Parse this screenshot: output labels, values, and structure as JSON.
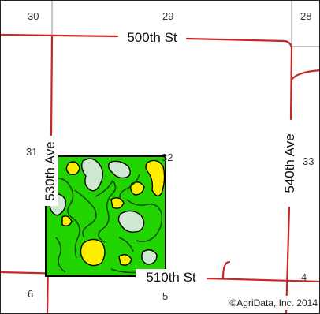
{
  "map": {
    "sections": [
      "30",
      "29",
      "28",
      "31",
      "32",
      "33",
      "6",
      "5",
      "4"
    ],
    "roads": {
      "north": "500th St",
      "south": "510th St",
      "west": "530th Ave",
      "east": "540th Ave"
    },
    "copyright": "©AgriData, Inc. 2014",
    "colors": {
      "background": "#ffffff",
      "road": "#c62828",
      "section_line": "#a0a0a0",
      "field_outline": "#000000",
      "soil_green": "#22d400",
      "soil_yellow": "#ffee00",
      "soil_pale": "#cfe8d2",
      "soil_dark_line": "#0a4a0a"
    }
  }
}
